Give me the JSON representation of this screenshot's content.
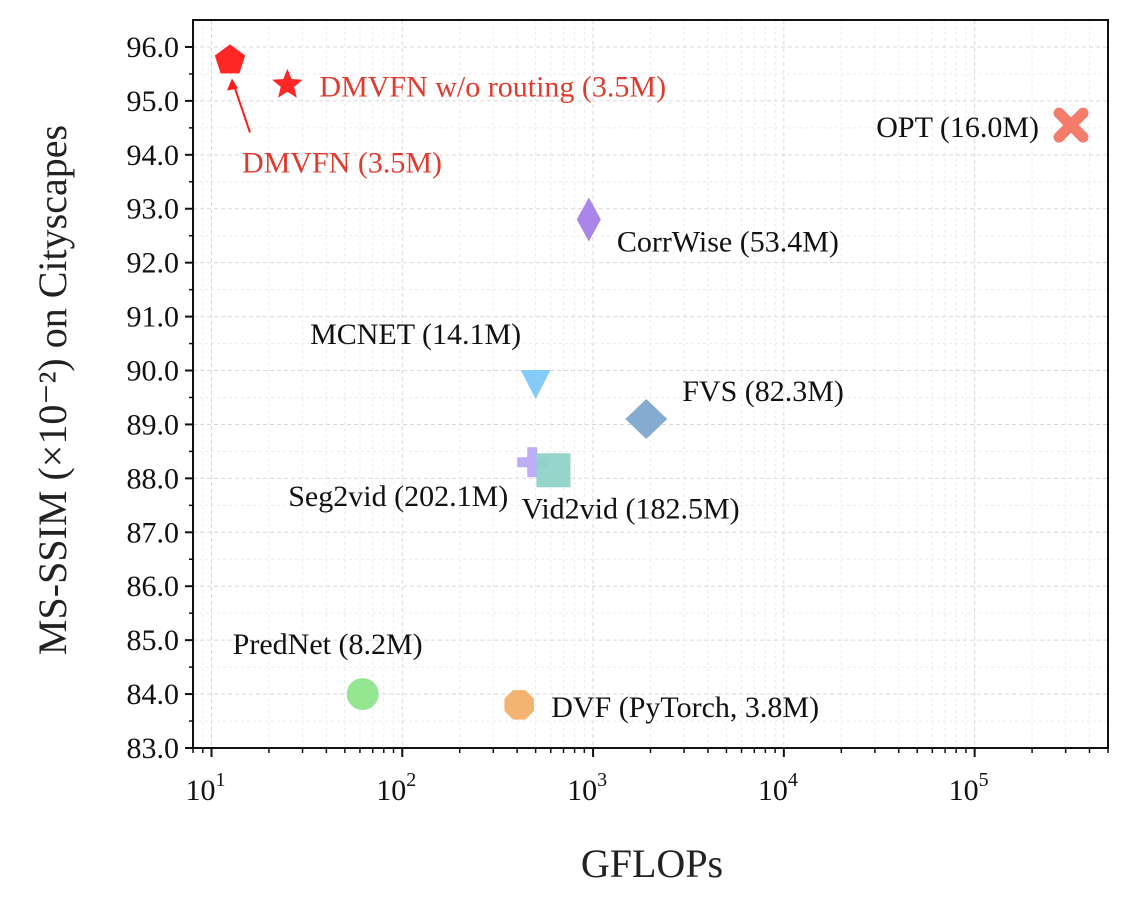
{
  "chart_data": {
    "type": "scatter",
    "title": "",
    "xlabel": "GFLOPs",
    "ylabel": "MS-SSIM (×10⁻²) on Cityscapes",
    "xscale": "log",
    "xlim": [
      8,
      500000
    ],
    "ylim": [
      83.0,
      96.5
    ],
    "grid": true,
    "xticks": [
      {
        "value": 10,
        "base": "10",
        "exp": "1"
      },
      {
        "value": 100,
        "base": "10",
        "exp": "2"
      },
      {
        "value": 1000,
        "base": "10",
        "exp": "3"
      },
      {
        "value": 10000,
        "base": "10",
        "exp": "4"
      },
      {
        "value": 100000,
        "base": "10",
        "exp": "5"
      }
    ],
    "yticks": [
      "83.0",
      "84.0",
      "85.0",
      "86.0",
      "87.0",
      "88.0",
      "89.0",
      "90.0",
      "91.0",
      "92.0",
      "93.0",
      "94.0",
      "95.0",
      "96.0"
    ],
    "points": [
      {
        "label": "DMVFN (3.5M)",
        "x": 12.5,
        "y": 95.75,
        "marker": "pentagon",
        "color": "#ff1a1a",
        "text_color": "#e03a2e",
        "label_pos": "below-arrow"
      },
      {
        "label": "DMVFN w/o routing (3.5M)",
        "x": 25,
        "y": 95.3,
        "marker": "star",
        "color": "#ff1a1a",
        "text_color": "#e03a2e",
        "label_pos": "right"
      },
      {
        "label": "OPT (16.0M)",
        "x": 320000,
        "y": 94.55,
        "marker": "x",
        "color": "#f47c6b",
        "text_color": "#111111",
        "label_pos": "left"
      },
      {
        "label": "CorrWise (53.4M)",
        "x": 950,
        "y": 92.8,
        "marker": "thin-diamond",
        "color": "#a57de8",
        "text_color": "#111111",
        "label_pos": "below-right"
      },
      {
        "label": "MCNET (14.1M)",
        "x": 500,
        "y": 89.75,
        "marker": "triangle-down",
        "color": "#7ec8f7",
        "text_color": "#111111",
        "label_pos": "above"
      },
      {
        "label": "FVS (82.3M)",
        "x": 1900,
        "y": 89.1,
        "marker": "diamond",
        "color": "#7ea6cf",
        "text_color": "#111111",
        "label_pos": "above-right"
      },
      {
        "label": "Seg2vid (202.1M)",
        "x": 480,
        "y": 88.3,
        "marker": "plus",
        "color": "#b9a8f5",
        "text_color": "#111111",
        "label_pos": "below-left"
      },
      {
        "label": "Vid2vid (182.5M)",
        "x": 620,
        "y": 88.15,
        "marker": "square",
        "color": "#8fd3c8",
        "text_color": "#111111",
        "label_pos": "below-right"
      },
      {
        "label": "PredNet (8.2M)",
        "x": 62,
        "y": 84.0,
        "marker": "circle",
        "color": "#8ee68a",
        "text_color": "#111111",
        "label_pos": "above"
      },
      {
        "label": "DVF (PyTorch, 3.8M)",
        "x": 410,
        "y": 83.8,
        "marker": "octagon",
        "color": "#f2b06a",
        "text_color": "#111111",
        "label_pos": "right"
      }
    ]
  }
}
